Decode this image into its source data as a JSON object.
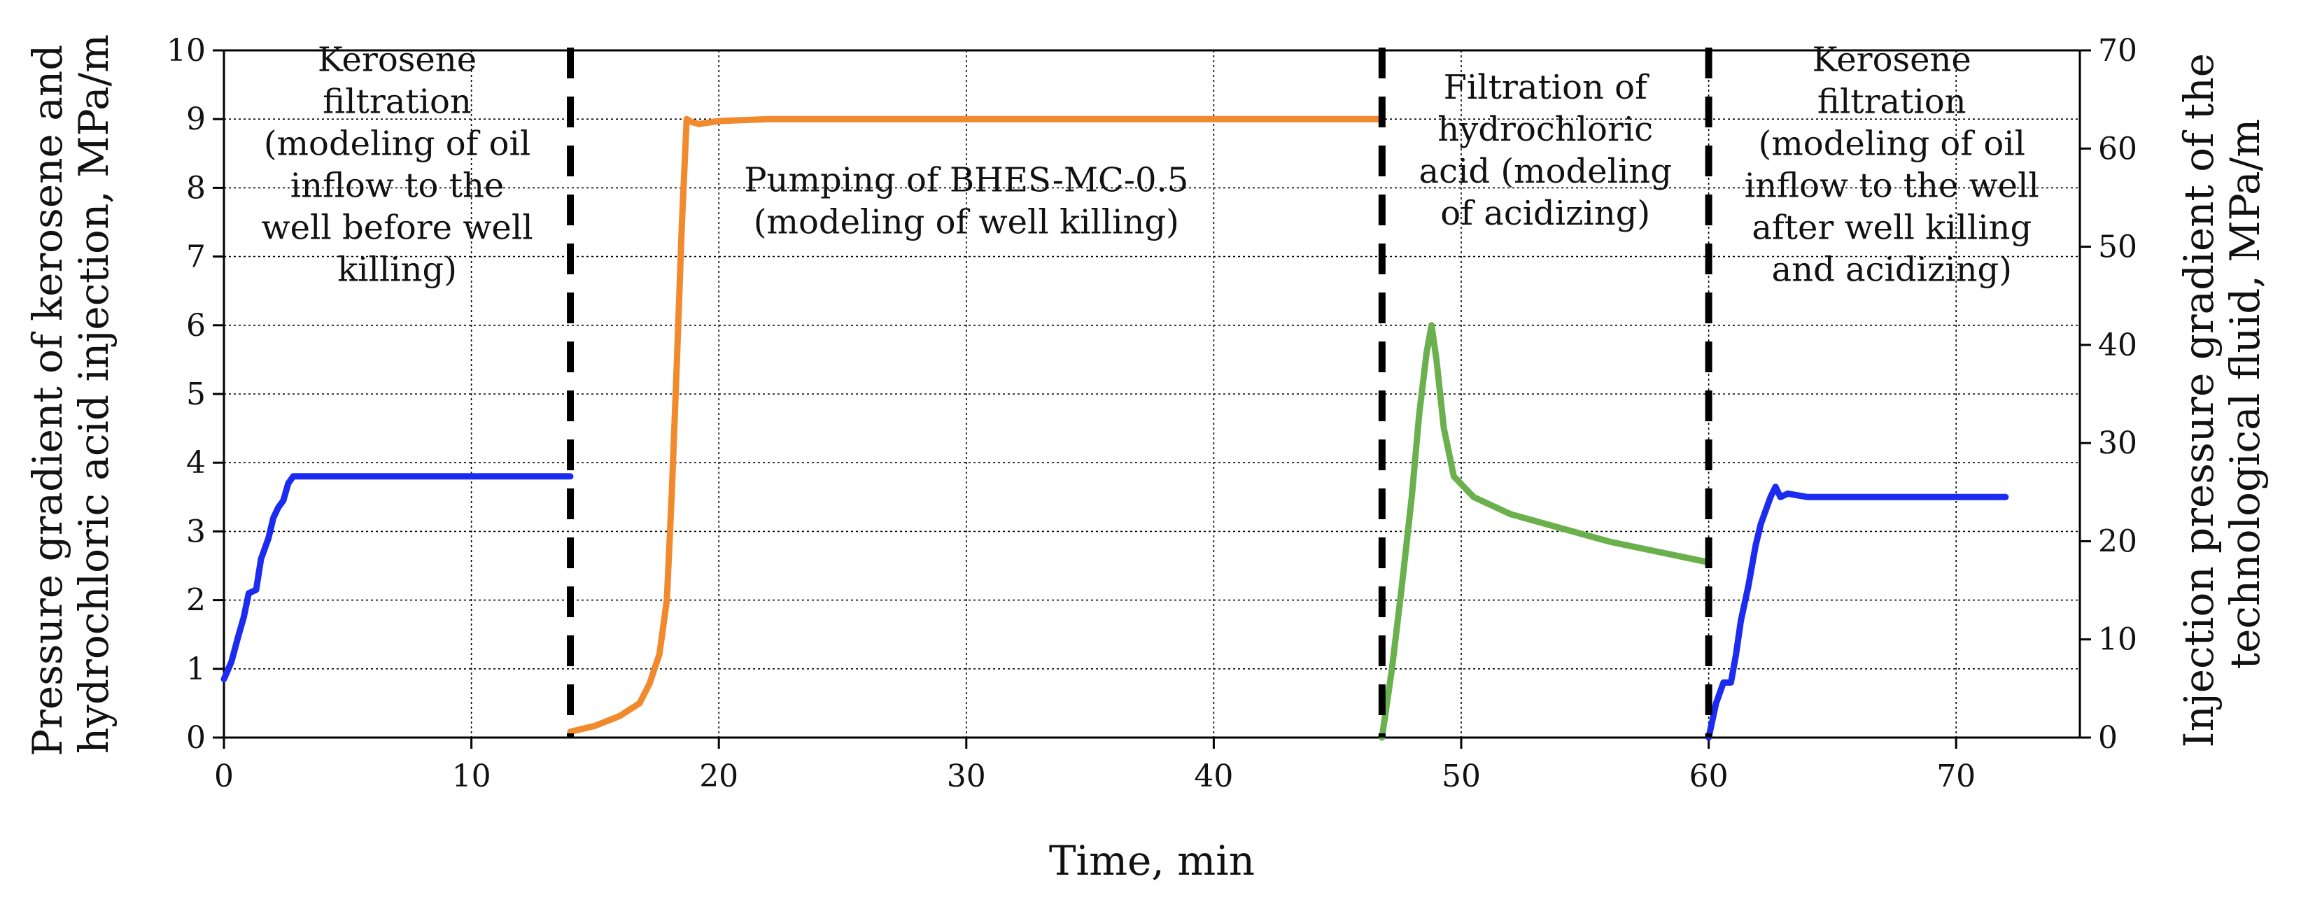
{
  "chart_data": {
    "type": "line",
    "xlabel": "Time, min",
    "ylabel_left": "Pressure gradient of kerosene and hydrochloric acid injection, MPa/m",
    "ylabel_left_lines": [
      "Pressure gradient of kerosene and",
      "hydrochloric acid injection, MPa/m"
    ],
    "ylabel_right": "Injection pressure gradient of the technological fluid, MPa/m",
    "ylabel_right_lines": [
      "Injection pressure gradient of the",
      "technological fluid, MPa/m"
    ],
    "xlim": [
      0,
      75
    ],
    "ylim_left": [
      0,
      10
    ],
    "ylim_right": [
      0,
      70
    ],
    "x_ticks": [
      0,
      10,
      20,
      30,
      40,
      50,
      60,
      70
    ],
    "y_left_ticks": [
      0,
      1,
      2,
      3,
      4,
      5,
      6,
      7,
      8,
      9,
      10
    ],
    "y_right_ticks": [
      0,
      10,
      20,
      30,
      40,
      50,
      60,
      70
    ],
    "grid": true,
    "stage_dividers": [
      14,
      46.8,
      60
    ],
    "annotations": [
      {
        "id": "stage1",
        "lines": [
          "Kerosene",
          "filtration",
          "(modeling of oil",
          "inflow to the",
          "well before well",
          "killing)"
        ],
        "x": 7,
        "y": 9.8
      },
      {
        "id": "stage2",
        "lines": [
          "Pumping of BHES-MC-0.5",
          "(modeling of well killing)"
        ],
        "x": 30,
        "y": 8.05
      },
      {
        "id": "stage3",
        "lines": [
          "Filtration of",
          "hydrochloric",
          "acid (modeling",
          "of acidizing)"
        ],
        "x": 53.4,
        "y": 9.4
      },
      {
        "id": "stage4",
        "lines": [
          "Kerosene",
          "filtration",
          "(modeling of oil",
          "inflow to the well",
          "after well killing",
          "and acidizing)"
        ],
        "x": 67.4,
        "y": 9.8
      }
    ],
    "series": [
      {
        "name": "Kerosene filtration before well killing",
        "axis": "left",
        "color": "#1b2bf0",
        "points": [
          [
            0,
            0.85
          ],
          [
            0.3,
            1.1
          ],
          [
            0.6,
            1.5
          ],
          [
            0.8,
            1.75
          ],
          [
            1.0,
            2.1
          ],
          [
            1.3,
            2.15
          ],
          [
            1.5,
            2.6
          ],
          [
            1.8,
            2.9
          ],
          [
            2.0,
            3.2
          ],
          [
            2.2,
            3.35
          ],
          [
            2.4,
            3.45
          ],
          [
            2.6,
            3.7
          ],
          [
            2.8,
            3.8
          ],
          [
            3.0,
            3.8
          ],
          [
            14,
            3.8
          ]
        ]
      },
      {
        "name": "Pumping of BHES-MC-0.5",
        "axis": "right",
        "color": "#f08a2c",
        "points": [
          [
            14,
            0.6
          ],
          [
            15,
            1.2
          ],
          [
            16,
            2.2
          ],
          [
            16.8,
            3.5
          ],
          [
            17.2,
            5.5
          ],
          [
            17.6,
            8.5
          ],
          [
            17.9,
            14
          ],
          [
            18.1,
            25
          ],
          [
            18.3,
            38
          ],
          [
            18.5,
            52
          ],
          [
            18.7,
            63
          ],
          [
            18.9,
            62.7
          ],
          [
            19.2,
            62.5
          ],
          [
            20,
            62.8
          ],
          [
            22,
            63
          ],
          [
            30,
            63
          ],
          [
            40,
            63
          ],
          [
            46.8,
            63
          ]
        ]
      },
      {
        "name": "Filtration of hydrochloric acid",
        "axis": "left",
        "color": "#6ab04c",
        "points": [
          [
            46.8,
            0
          ],
          [
            47.2,
            1.0
          ],
          [
            47.6,
            2.2
          ],
          [
            48.0,
            3.5
          ],
          [
            48.3,
            4.7
          ],
          [
            48.6,
            5.6
          ],
          [
            48.8,
            6.0
          ],
          [
            49.0,
            5.5
          ],
          [
            49.3,
            4.5
          ],
          [
            49.7,
            3.8
          ],
          [
            50.5,
            3.5
          ],
          [
            52,
            3.25
          ],
          [
            54,
            3.05
          ],
          [
            56,
            2.85
          ],
          [
            58,
            2.7
          ],
          [
            60,
            2.55
          ]
        ]
      },
      {
        "name": "Kerosene filtration after well killing and acidizing",
        "axis": "left",
        "color": "#1b2bf0",
        "points": [
          [
            60,
            0
          ],
          [
            60.3,
            0.5
          ],
          [
            60.6,
            0.8
          ],
          [
            60.9,
            0.8
          ],
          [
            61.1,
            1.2
          ],
          [
            61.3,
            1.7
          ],
          [
            61.6,
            2.2
          ],
          [
            61.9,
            2.8
          ],
          [
            62.1,
            3.1
          ],
          [
            62.3,
            3.3
          ],
          [
            62.5,
            3.5
          ],
          [
            62.7,
            3.65
          ],
          [
            62.9,
            3.5
          ],
          [
            63.2,
            3.55
          ],
          [
            64,
            3.5
          ],
          [
            72,
            3.5
          ]
        ]
      }
    ]
  }
}
